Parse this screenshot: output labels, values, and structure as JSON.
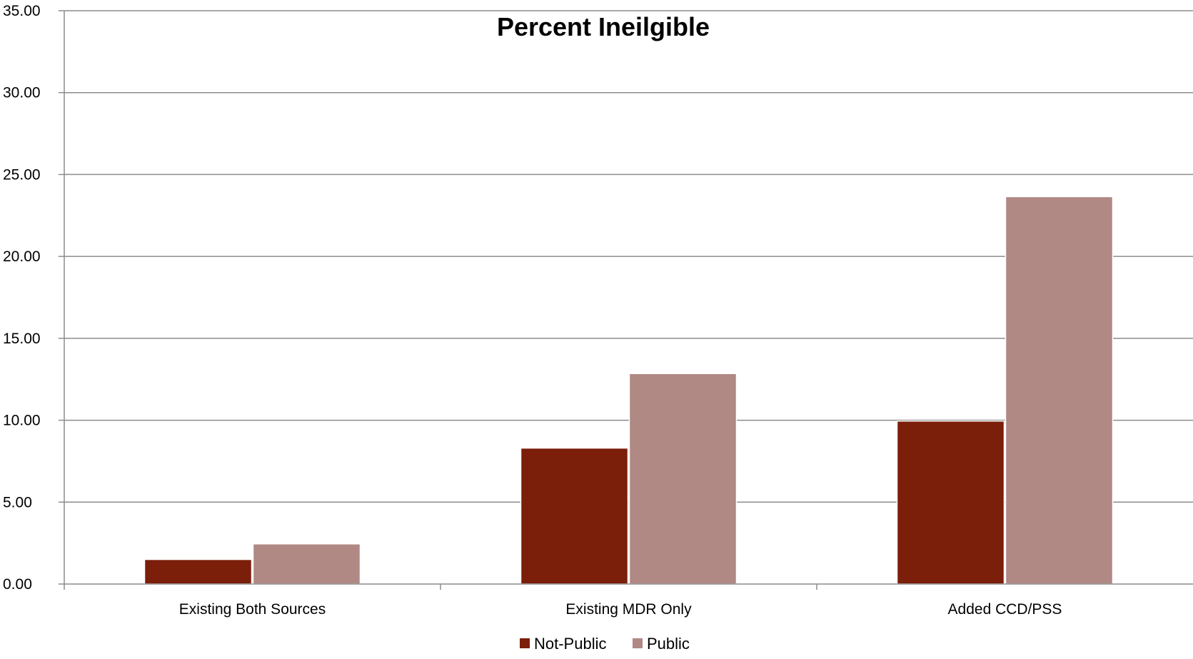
{
  "chart_data": {
    "type": "bar",
    "title": "Percent Ineilgible",
    "xlabel": "",
    "ylabel": "",
    "categories": [
      "Existing Both Sources",
      "Existing MDR Only",
      "Added CCD/PSS"
    ],
    "series": [
      {
        "name": "Not-Public",
        "color": "#7b1e0a",
        "values": [
          1.5,
          8.3,
          9.95
        ]
      },
      {
        "name": "Public",
        "color": "#b08884",
        "values": [
          2.45,
          12.85,
          23.65
        ]
      }
    ],
    "ylim": [
      0,
      35
    ],
    "yticks": [
      "0.00",
      "5.00",
      "10.00",
      "15.00",
      "20.00",
      "25.00",
      "30.00",
      "35.00"
    ],
    "grid": true,
    "legend_position": "bottom-center"
  }
}
